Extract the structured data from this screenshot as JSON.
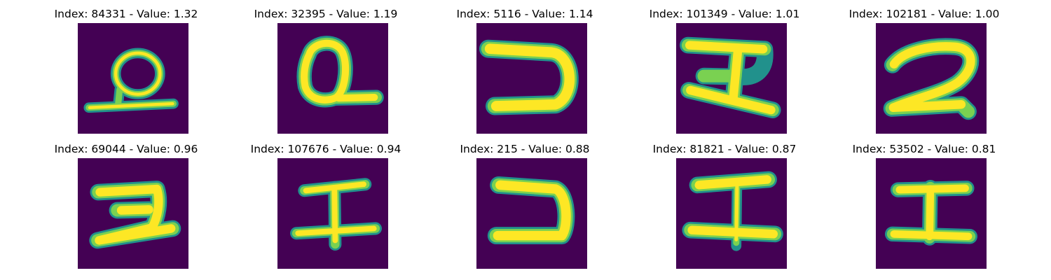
{
  "colors": {
    "background": "#440154",
    "stroke_outer": "#21918c",
    "stroke_mid": "#7ad151",
    "stroke_core": "#fde725"
  },
  "panels": [
    {
      "title": "Index: 84331 - Value: 1.32",
      "glyph": "glyph-a-ring"
    },
    {
      "title": "Index: 32395 - Value: 1.19",
      "glyph": "glyph-a-loop"
    },
    {
      "title": "Index: 5116 - Value: 1.14",
      "glyph": "glyph-backward-c"
    },
    {
      "title": "Index: 101349 - Value: 1.01",
      "glyph": "glyph-rotated-h"
    },
    {
      "title": "Index: 102181 - Value: 1.00",
      "glyph": "glyph-two"
    },
    {
      "title": "Index: 69044 - Value: 0.96",
      "glyph": "glyph-z"
    },
    {
      "title": "Index: 107676 - Value: 0.94",
      "glyph": "glyph-i-beam"
    },
    {
      "title": "Index: 215 - Value: 0.88",
      "glyph": "glyph-backward-c"
    },
    {
      "title": "Index: 81821 - Value: 0.87",
      "glyph": "glyph-i-beam"
    },
    {
      "title": "Index: 53502 - Value: 0.81",
      "glyph": "glyph-i-beam"
    }
  ]
}
